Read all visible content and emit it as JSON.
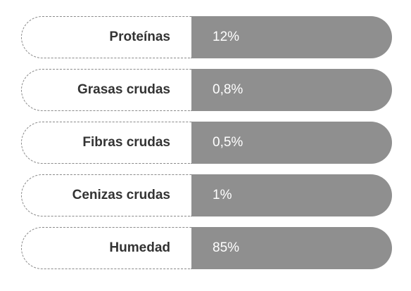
{
  "nutrition": {
    "rows": [
      {
        "label": "Proteínas",
        "value": "12%"
      },
      {
        "label": "Grasas crudas",
        "value": "0,8%"
      },
      {
        "label": "Fibras crudas",
        "value": "0,5%"
      },
      {
        "label": "Cenizas crudas",
        "value": "1%"
      },
      {
        "label": "Humedad",
        "value": "85%"
      }
    ]
  },
  "colors": {
    "value_background": "#8f8f8f",
    "label_text": "#333333",
    "value_text": "#ffffff",
    "label_border": "#8a8a8a"
  }
}
